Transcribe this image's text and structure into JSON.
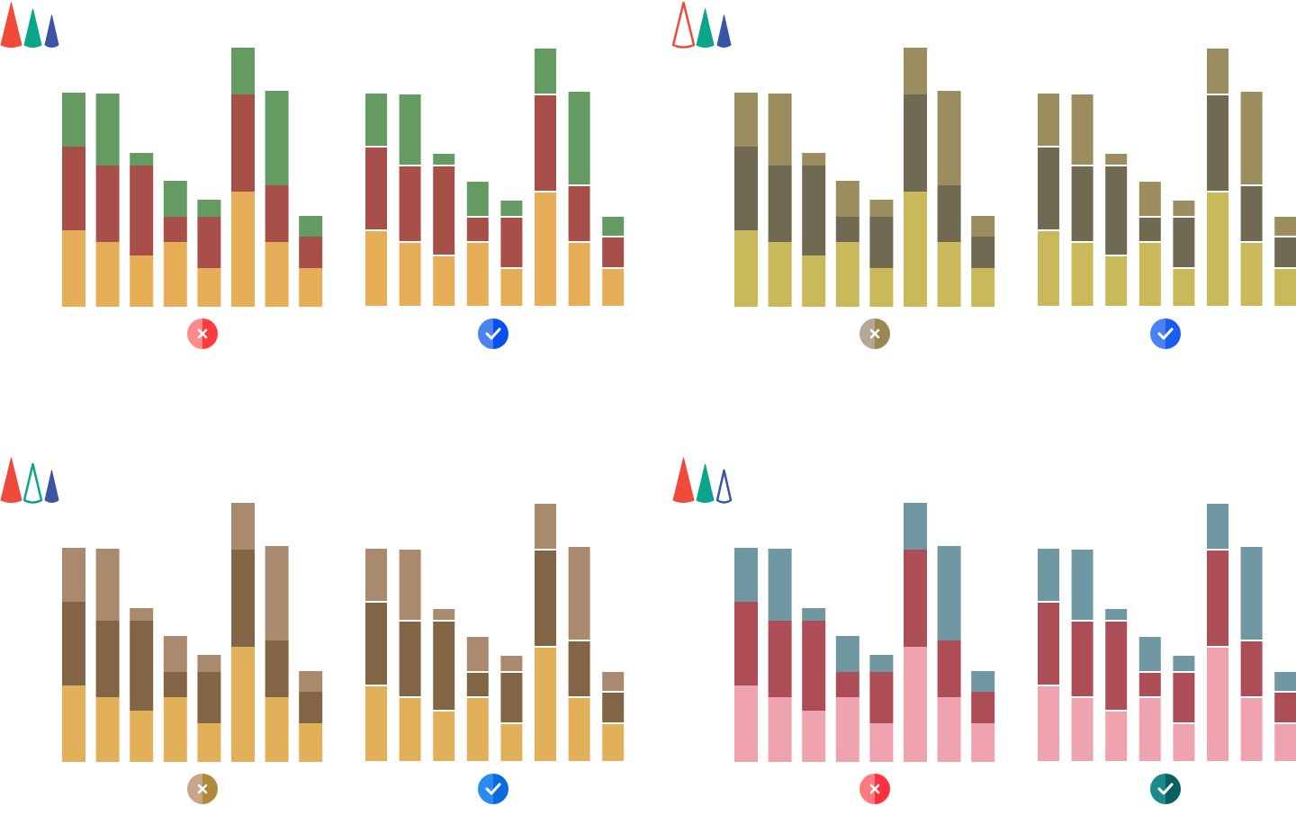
{
  "chart_data": [
    {
      "type": "bar",
      "stacked": true,
      "separators": false,
      "ylim": [
        0,
        300
      ],
      "series": [
        {
          "color": "#e5ae57",
          "values": [
            85,
            72,
            57,
            72,
            43,
            128,
            72,
            43
          ]
        },
        {
          "color": "#a94f4a",
          "values": [
            93,
            85,
            100,
            28,
            57,
            108,
            63,
            35
          ]
        },
        {
          "color": "#639b62",
          "values": [
            60,
            80,
            14,
            40,
            19,
            52,
            105,
            23
          ]
        }
      ]
    },
    {
      "type": "bar",
      "stacked": true,
      "separators": true,
      "ylim": [
        0,
        300
      ],
      "series": [
        {
          "color": "#e5ae57",
          "values": [
            85,
            72,
            57,
            72,
            43,
            128,
            72,
            43
          ]
        },
        {
          "color": "#a94f4a",
          "values": [
            93,
            85,
            100,
            28,
            57,
            108,
            63,
            35
          ]
        },
        {
          "color": "#639b62",
          "values": [
            60,
            80,
            14,
            40,
            19,
            52,
            105,
            23
          ]
        }
      ]
    },
    {
      "type": "bar",
      "stacked": true,
      "separators": false,
      "ylim": [
        0,
        300
      ],
      "series": [
        {
          "color": "#c9b95a",
          "values": [
            85,
            72,
            57,
            72,
            43,
            128,
            72,
            43
          ]
        },
        {
          "color": "#716a52",
          "values": [
            93,
            85,
            100,
            28,
            57,
            108,
            63,
            35
          ]
        },
        {
          "color": "#9c8d5e",
          "values": [
            60,
            80,
            14,
            40,
            19,
            52,
            105,
            23
          ]
        }
      ]
    },
    {
      "type": "bar",
      "stacked": true,
      "separators": true,
      "ylim": [
        0,
        300
      ],
      "series": [
        {
          "color": "#c9b95a",
          "values": [
            85,
            72,
            57,
            72,
            43,
            128,
            72,
            43
          ]
        },
        {
          "color": "#716a52",
          "values": [
            93,
            85,
            100,
            28,
            57,
            108,
            63,
            35
          ]
        },
        {
          "color": "#9c8d5e",
          "values": [
            60,
            80,
            14,
            40,
            19,
            52,
            105,
            23
          ]
        }
      ]
    },
    {
      "type": "bar",
      "stacked": true,
      "separators": false,
      "ylim": [
        0,
        300
      ],
      "series": [
        {
          "color": "#e3b05a",
          "values": [
            85,
            72,
            57,
            72,
            43,
            128,
            72,
            43
          ]
        },
        {
          "color": "#816544",
          "values": [
            93,
            85,
            100,
            28,
            57,
            108,
            63,
            35
          ]
        },
        {
          "color": "#aa8a6e",
          "values": [
            60,
            80,
            14,
            40,
            19,
            52,
            105,
            23
          ]
        }
      ]
    },
    {
      "type": "bar",
      "stacked": true,
      "separators": true,
      "ylim": [
        0,
        300
      ],
      "series": [
        {
          "color": "#e3b05a",
          "values": [
            85,
            72,
            57,
            72,
            43,
            128,
            72,
            43
          ]
        },
        {
          "color": "#816544",
          "values": [
            93,
            85,
            100,
            28,
            57,
            108,
            63,
            35
          ]
        },
        {
          "color": "#aa8a6e",
          "values": [
            60,
            80,
            14,
            40,
            19,
            52,
            105,
            23
          ]
        }
      ]
    },
    {
      "type": "bar",
      "stacked": true,
      "separators": false,
      "ylim": [
        0,
        300
      ],
      "series": [
        {
          "color": "#eea3ae",
          "values": [
            85,
            72,
            57,
            72,
            43,
            128,
            72,
            43
          ]
        },
        {
          "color": "#ad4d55",
          "values": [
            93,
            85,
            100,
            28,
            57,
            108,
            63,
            35
          ]
        },
        {
          "color": "#6f98a3",
          "values": [
            60,
            80,
            14,
            40,
            19,
            52,
            105,
            23
          ]
        }
      ]
    },
    {
      "type": "bar",
      "stacked": true,
      "separators": true,
      "ylim": [
        0,
        300
      ],
      "series": [
        {
          "color": "#eea3ae",
          "values": [
            85,
            72,
            57,
            72,
            43,
            128,
            72,
            43
          ]
        },
        {
          "color": "#ad4d55",
          "values": [
            93,
            85,
            100,
            28,
            57,
            108,
            63,
            35
          ]
        },
        {
          "color": "#6f98a3",
          "values": [
            60,
            80,
            14,
            40,
            19,
            52,
            105,
            23
          ]
        }
      ]
    }
  ]
}
